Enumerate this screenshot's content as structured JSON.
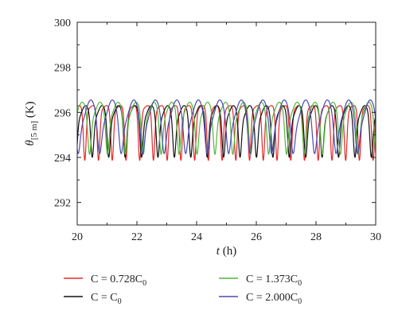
{
  "chart_data": {
    "type": "line",
    "title": "",
    "xlabel": {
      "var": "t",
      "unit": "(h)"
    },
    "ylabel": {
      "var": "θ",
      "sub": "[5 m]",
      "unit": "(K)"
    },
    "xlim": [
      20,
      30
    ],
    "ylim": [
      291,
      300
    ],
    "x_ticks": [
      20,
      22,
      24,
      26,
      28,
      30
    ],
    "y_ticks": [
      292,
      294,
      296,
      298,
      300
    ],
    "grid": false,
    "legend_position": "bottom",
    "series": [
      {
        "name": "C = 0.728C0",
        "legend": {
          "lhs": "C = 0.728C",
          "sub": "0"
        },
        "color": "#e8282b",
        "period_h": 0.46,
        "phase_h": 0.0,
        "baseline": 296.2,
        "trough": 294.0,
        "peak_amp": 0.1,
        "trough_width_h": 0.045
      },
      {
        "name": "C = C0",
        "legend": {
          "lhs": "C = C",
          "sub": "0"
        },
        "color": "#111111",
        "period_h": 0.55,
        "phase_h": 0.2,
        "baseline": 296.0,
        "trough": 294.4,
        "peak_amp": 0.3,
        "trough_width_h": 0.05
      },
      {
        "name": "C = 1.373C0",
        "legend": {
          "lhs": "C = 1.373C",
          "sub": "0"
        },
        "color": "#4fb83a",
        "period_h": 0.6,
        "phase_h": 0.08,
        "baseline": 296.1,
        "trough": 294.6,
        "peak_amp": 0.35,
        "trough_width_h": 0.055
      },
      {
        "name": "C = 2.000C0",
        "legend": {
          "lhs": "C = 2.000C",
          "sub": "0"
        },
        "color": "#4a4ab5",
        "period_h": 0.72,
        "phase_h": 0.35,
        "baseline": 296.0,
        "trough": 294.9,
        "peak_amp": 0.55,
        "trough_width_h": 0.065
      }
    ]
  }
}
